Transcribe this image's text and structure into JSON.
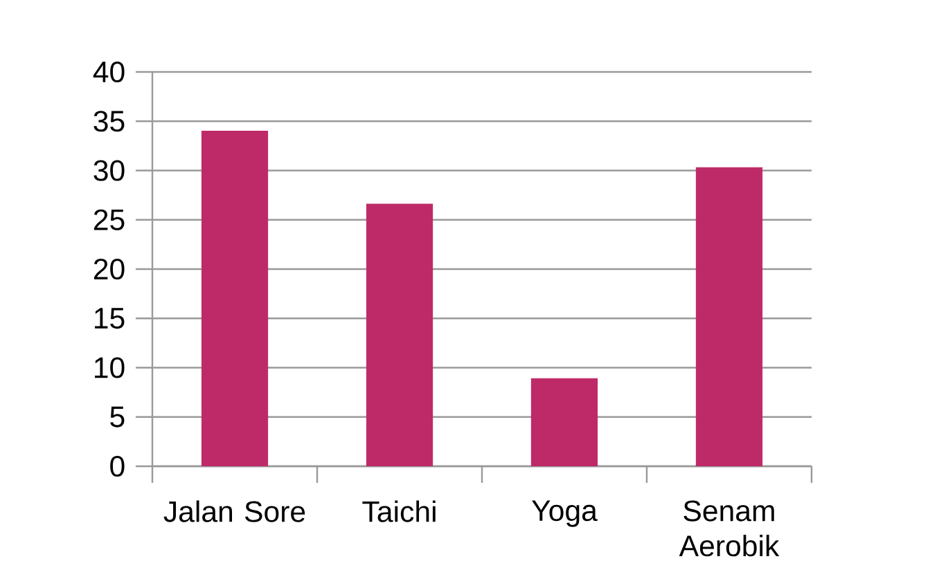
{
  "chart_data": {
    "type": "bar",
    "categories": [
      "Jalan Sore",
      "Taichi",
      "Yoga",
      "Senam Aerobik"
    ],
    "values": [
      34,
      26.6,
      8.9,
      30.3
    ],
    "color": "#be2a68",
    "ylim": [
      0,
      40
    ],
    "yticks": [
      0,
      5,
      10,
      15,
      20,
      25,
      30,
      35,
      40
    ],
    "grid": "y"
  }
}
